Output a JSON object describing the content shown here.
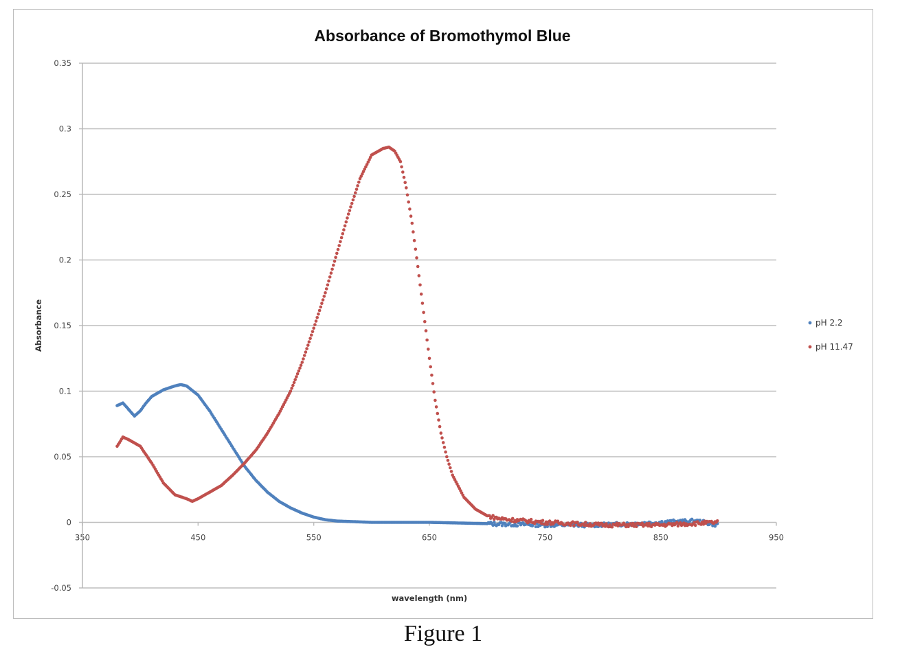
{
  "figure": {
    "caption": "Figure 1"
  },
  "chart_data": {
    "type": "scatter",
    "title": "Absorbance of Bromothymol Blue",
    "xlabel": "wavelength (nm)",
    "ylabel": "Absorbance",
    "xlim": [
      350,
      950
    ],
    "ylim": [
      -0.05,
      0.35
    ],
    "x_ticks": [
      "350",
      "450",
      "550",
      "650",
      "750",
      "850",
      "950"
    ],
    "y_ticks": [
      "0.35",
      "0.3",
      "0.25",
      "0.2",
      "0.15",
      "0.1",
      "0.05",
      "0",
      "-0.05"
    ],
    "grid": "horizontal",
    "legend_position": "right",
    "series": [
      {
        "name": "pH 2.2",
        "color": "#4f81bd",
        "x": [
          380,
          385,
          390,
          395,
          400,
          405,
          410,
          420,
          430,
          435,
          440,
          450,
          460,
          470,
          480,
          490,
          500,
          510,
          520,
          530,
          540,
          550,
          560,
          570,
          600,
          650,
          700,
          750,
          800,
          850,
          880,
          900
        ],
        "y": [
          0.089,
          0.091,
          0.086,
          0.081,
          0.085,
          0.091,
          0.096,
          0.101,
          0.104,
          0.105,
          0.104,
          0.097,
          0.085,
          0.071,
          0.057,
          0.043,
          0.032,
          0.023,
          0.016,
          0.011,
          0.007,
          0.004,
          0.002,
          0.001,
          0.0,
          0.0,
          -0.001,
          -0.002,
          -0.002,
          0.0,
          0.001,
          -0.002
        ]
      },
      {
        "name": "pH 11.47",
        "color": "#c0504d",
        "x": [
          380,
          385,
          390,
          400,
          410,
          420,
          430,
          440,
          445,
          450,
          460,
          470,
          480,
          490,
          500,
          510,
          520,
          530,
          540,
          550,
          560,
          570,
          580,
          590,
          600,
          610,
          615,
          620,
          625,
          630,
          635,
          640,
          645,
          650,
          655,
          660,
          665,
          670,
          680,
          690,
          700,
          710,
          720,
          750,
          800,
          850,
          900
        ],
        "y": [
          0.058,
          0.065,
          0.063,
          0.058,
          0.045,
          0.03,
          0.021,
          0.018,
          0.016,
          0.018,
          0.023,
          0.028,
          0.036,
          0.045,
          0.055,
          0.068,
          0.083,
          0.1,
          0.122,
          0.148,
          0.175,
          0.205,
          0.235,
          0.262,
          0.28,
          0.285,
          0.286,
          0.283,
          0.275,
          0.255,
          0.228,
          0.195,
          0.16,
          0.125,
          0.093,
          0.068,
          0.05,
          0.036,
          0.019,
          0.01,
          0.005,
          0.003,
          0.002,
          0.0,
          -0.002,
          -0.002,
          0.0
        ]
      }
    ]
  }
}
